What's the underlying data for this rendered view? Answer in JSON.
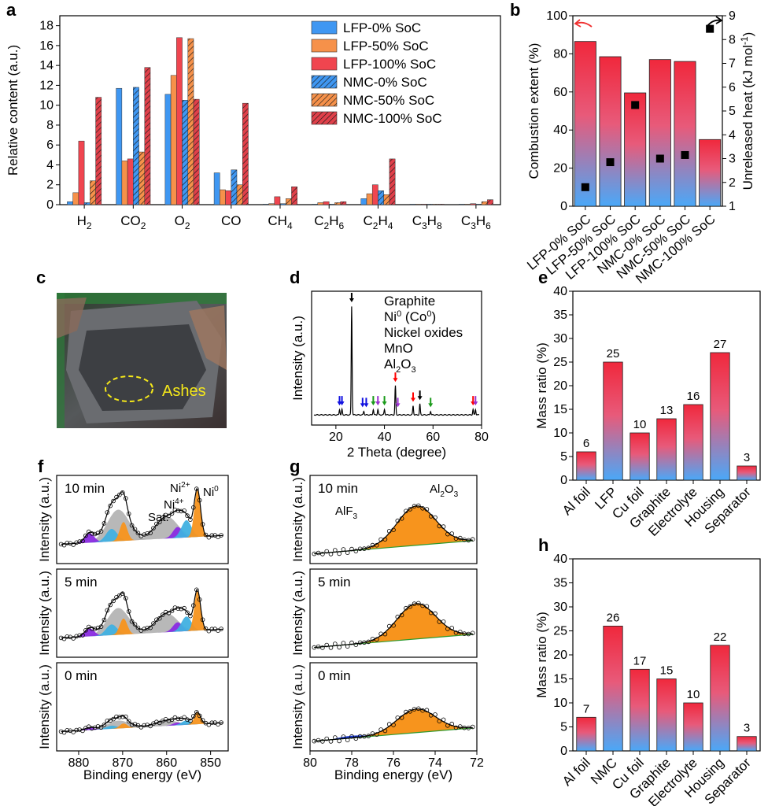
{
  "colors": {
    "lfp0": "#3f97f2",
    "lfp50": "#f6914a",
    "lfp100": "#f0454f",
    "nmc0": "#3f97f2",
    "nmc50": "#f6914a",
    "nmc100": "#e0404a",
    "grad_top": "#f0283c",
    "grad_bottom": "#50a8f8",
    "ni": "#ff0000",
    "nio": "#1010e0",
    "mno": "#1a9a1a",
    "al2o3": "#9b30d0",
    "text_blue": "#1a1aff",
    "orange_fill": "#f7941d",
    "gray_fill": "#b4b4b4",
    "cyan_fill": "#40b0e0",
    "purple_fill": "#8a2be2",
    "green_line": "#2e9a2e"
  },
  "panel_labels": [
    "a",
    "b",
    "c",
    "d",
    "e",
    "f",
    "g",
    "h"
  ],
  "chart_data": [
    {
      "id": "a",
      "type": "bar",
      "ylabel": "Relative content (a.u.)",
      "ylim": [
        0,
        19
      ],
      "yticks": [
        0,
        2,
        4,
        6,
        8,
        10,
        12,
        14,
        16,
        18
      ],
      "categories": [
        {
          "main": "H",
          "sub": "2",
          "tail": ""
        },
        {
          "main": "CO",
          "sub": "2",
          "tail": ""
        },
        {
          "main": "O",
          "sub": "2",
          "tail": ""
        },
        {
          "main": "CO",
          "sub": "",
          "tail": ""
        },
        {
          "main": "CH",
          "sub": "4",
          "tail": ""
        },
        {
          "main": "C",
          "sub": "2",
          "tail": "H",
          "sub2": "6"
        },
        {
          "main": "C",
          "sub": "2",
          "tail": "H",
          "sub2": "4"
        },
        {
          "main": "C",
          "sub": "3",
          "tail": "H",
          "sub2": "8"
        },
        {
          "main": "C",
          "sub": "3",
          "tail": "H",
          "sub2": "6"
        }
      ],
      "series": [
        {
          "name": "LFP-0% SoC",
          "hatch": false,
          "color_key": "lfp0",
          "values": [
            0.3,
            11.7,
            11.1,
            3.2,
            0.05,
            0.05,
            0.6,
            0.05,
            0.05
          ]
        },
        {
          "name": "LFP-50% SoC",
          "hatch": false,
          "color_key": "lfp50",
          "values": [
            1.2,
            4.4,
            13.0,
            1.5,
            0.1,
            0.2,
            1.1,
            0.05,
            0.05
          ]
        },
        {
          "name": "LFP-100% SoC",
          "hatch": false,
          "color_key": "lfp100",
          "values": [
            6.4,
            4.6,
            16.8,
            1.4,
            0.8,
            0.3,
            2.0,
            0.05,
            0.1
          ]
        },
        {
          "name": "NMC-0% SoC",
          "hatch": true,
          "color_key": "nmc0",
          "values": [
            0.2,
            11.8,
            10.5,
            3.5,
            0.1,
            0.05,
            1.4,
            0.05,
            0.05
          ]
        },
        {
          "name": "NMC-50% SoC",
          "hatch": true,
          "color_key": "nmc50",
          "values": [
            2.4,
            5.3,
            16.7,
            2.0,
            0.6,
            0.2,
            1.0,
            0.05,
            0.3
          ]
        },
        {
          "name": "NMC-100% SoC",
          "hatch": true,
          "color_key": "nmc100",
          "values": [
            10.8,
            13.8,
            10.6,
            10.2,
            1.8,
            0.3,
            4.6,
            0.05,
            0.5
          ]
        }
      ]
    },
    {
      "id": "b",
      "type": "bar+scatter",
      "categories": [
        "LFP-0% SoC",
        "LFP-50% SoC",
        "LFP-100% SoC",
        "NMC-0% SoC",
        "NMC-50% SoC",
        "NMC-100% SoC"
      ],
      "bar_values": [
        86.5,
        78.5,
        59.5,
        77,
        76,
        35
      ],
      "ylabel_left": "Combustion extent (%)",
      "ylim_left": [
        0,
        100
      ],
      "yticks_left": [
        0,
        20,
        40,
        60,
        80,
        100
      ],
      "scatter_values": [
        1.8,
        2.85,
        5.25,
        3.0,
        3.15,
        8.45
      ],
      "ylabel_right": "Unreleased heat (kJ mol",
      "ylabel_right_sup": "-1",
      "ylabel_right_tail": ")",
      "ylim_right": [
        1,
        9
      ],
      "yticks_right": [
        1,
        2,
        3,
        4,
        5,
        6,
        7,
        8,
        9
      ]
    },
    {
      "id": "d",
      "type": "line",
      "xlabel": "2 Theta (degree)",
      "ylabel": "Intensity (a.u.)",
      "xlim": [
        10,
        80
      ],
      "xticks": [
        20,
        40,
        60,
        80
      ],
      "peaks": [
        {
          "x": 21.5,
          "h": 0.03
        },
        {
          "x": 22.5,
          "h": 0.03
        },
        {
          "x": 26.5,
          "h": 0.6
        },
        {
          "x": 31.5,
          "h": 0.02
        },
        {
          "x": 35.4,
          "h": 0.03
        },
        {
          "x": 37.3,
          "h": 0.03
        },
        {
          "x": 40.0,
          "h": 0.03
        },
        {
          "x": 44.5,
          "h": 0.16
        },
        {
          "x": 51.8,
          "h": 0.05
        },
        {
          "x": 54.6,
          "h": 0.06
        },
        {
          "x": 59.0,
          "h": 0.02
        },
        {
          "x": 76.5,
          "h": 0.03
        },
        {
          "x": 77.5,
          "h": 0.03
        }
      ],
      "markers": [
        {
          "x": 21.5,
          "c": "nio",
          "h": 0.03
        },
        {
          "x": 22.5,
          "c": "nio",
          "h": 0.03
        },
        {
          "x": 26.5,
          "c": "graphite",
          "h": 0.6
        },
        {
          "x": 31.0,
          "c": "nio",
          "h": 0.02
        },
        {
          "x": 32.5,
          "c": "nio",
          "h": 0.02
        },
        {
          "x": 35.4,
          "c": "mno",
          "h": 0.03
        },
        {
          "x": 37.3,
          "c": "al2o3",
          "h": 0.03
        },
        {
          "x": 40.0,
          "c": "mno",
          "h": 0.03
        },
        {
          "x": 44.5,
          "c": "ni",
          "h": 0.16
        },
        {
          "x": 45.5,
          "c": "al2o3",
          "h": 0.02
        },
        {
          "x": 51.8,
          "c": "ni",
          "h": 0.05
        },
        {
          "x": 54.6,
          "c": "graphite",
          "h": 0.06
        },
        {
          "x": 59.0,
          "c": "mno",
          "h": 0.02
        },
        {
          "x": 76.5,
          "c": "ni",
          "h": 0.03
        },
        {
          "x": 77.5,
          "c": "al2o3",
          "h": 0.03
        }
      ],
      "legend": [
        {
          "key": "graphite",
          "text": "Graphite"
        },
        {
          "key": "ni",
          "text": "Ni",
          "sup": "0",
          "mid": " (Co",
          "sup2": "0",
          "end": ")"
        },
        {
          "key": "nio",
          "text": "Nickel oxides"
        },
        {
          "key": "mno",
          "text": "MnO"
        },
        {
          "key": "al2o3",
          "text": "Al",
          "sub": "2",
          "mid": "O",
          "sub2": "3"
        }
      ]
    },
    {
      "id": "e",
      "type": "bar",
      "categories": [
        "Al foil",
        "LFP",
        "Cu foil",
        "Graphite",
        "Electrolyte",
        "Housing",
        "Separator"
      ],
      "values": [
        6,
        25,
        10,
        13,
        16,
        27,
        3
      ],
      "ylabel": "Mass ratio (%)",
      "ylim": [
        0,
        40
      ],
      "yticks": [
        0,
        5,
        10,
        15,
        20,
        25,
        30,
        35,
        40
      ]
    },
    {
      "id": "f",
      "type": "xps",
      "xlabel": "Binding energy (eV)",
      "xlim": [
        885,
        846
      ],
      "xticks": [
        880,
        870,
        860,
        850
      ],
      "ylabel": "Intensity (a.u.)",
      "subpanels": [
        {
          "time": "10 min",
          "scale": 1.0
        },
        {
          "time": "5 min",
          "scale": 0.85
        },
        {
          "time": "0 min",
          "scale": 0.25
        }
      ],
      "peak_labels": [
        "Sat.",
        "Ni",
        "4+",
        "Ni",
        "2+",
        "Ni",
        "0"
      ]
    },
    {
      "id": "g",
      "type": "xps",
      "xlabel": "Binding energy (eV)",
      "xlim": [
        80,
        72
      ],
      "xticks": [
        80,
        78,
        76,
        74,
        72
      ],
      "ylabel": "Intensity (a.u.)",
      "subpanels": [
        {
          "time": "10 min",
          "scale": 1.0
        },
        {
          "time": "5 min",
          "scale": 0.9
        },
        {
          "time": "0 min",
          "scale": 0.6
        }
      ],
      "peak_labels": [
        "AlF",
        "3",
        "Al",
        "2",
        "O",
        "3"
      ]
    },
    {
      "id": "h",
      "type": "bar",
      "categories": [
        "Al foil",
        "NMC",
        "Cu foil",
        "Graphite",
        "Electrolyte",
        "Housing",
        "Separator"
      ],
      "values": [
        7,
        26,
        17,
        15,
        10,
        22,
        3
      ],
      "ylabel": "Mass ratio (%)",
      "ylim": [
        0,
        40
      ],
      "yticks": [
        0,
        5,
        10,
        15,
        20,
        25,
        30,
        35,
        40
      ]
    }
  ],
  "photo": {
    "label": "Ashes"
  }
}
